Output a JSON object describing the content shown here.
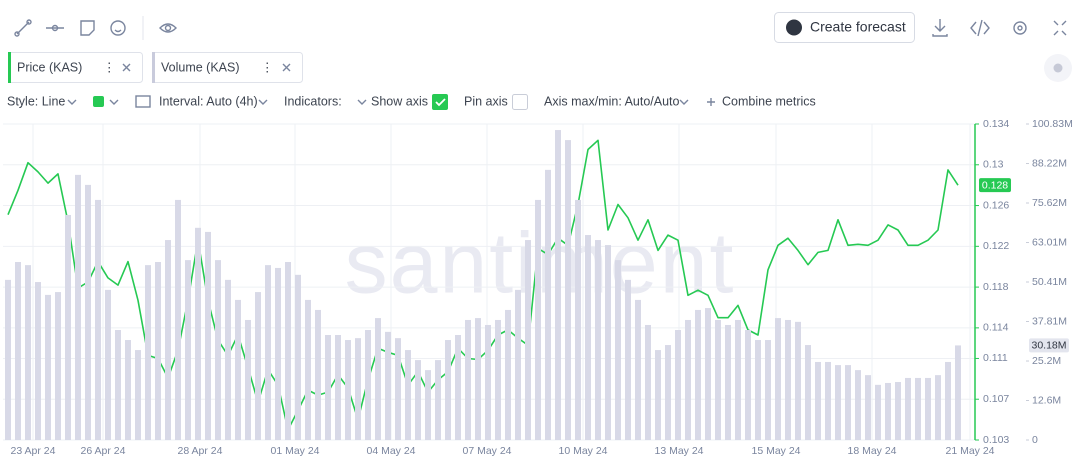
{
  "toolbar": {
    "create_forecast": "Create forecast"
  },
  "settings": {
    "style": "Style: Line",
    "interval": "Interval: Auto (4h)",
    "indicators": "Indicators:",
    "show_axis": "Show axis",
    "pin_axis": "Pin axis",
    "axis_minmax": "Axis max/min: Auto/Auto",
    "combine": "Combine metrics"
  },
  "watermark": "santiment",
  "chart_data": {
    "type": "line",
    "xlim": [
      -0.5,
      96.7
    ],
    "xticks": [
      {
        "value": 2.5,
        "label": "23 Apr 24"
      },
      {
        "value": 9.5,
        "label": "26 Apr 24"
      },
      {
        "value": 19.2,
        "label": "28 Apr 24"
      },
      {
        "value": 28.7,
        "label": "01 May 24"
      },
      {
        "value": 38.3,
        "label": "04 May 24"
      },
      {
        "value": 47.9,
        "label": "07 May 24"
      },
      {
        "value": 57.5,
        "label": "10 May 24"
      },
      {
        "value": 67.1,
        "label": "13 May 24"
      },
      {
        "value": 76.8,
        "label": "15 May 24"
      },
      {
        "value": 86.4,
        "label": "18 May 24"
      },
      {
        "value": 96.2,
        "label": "21 May 24"
      }
    ],
    "ylim": [
      0.103,
      0.134
    ],
    "yticks": [
      0.134,
      0.13,
      0.126,
      0.122,
      0.118,
      0.114,
      0.111,
      0.107,
      0.103
    ],
    "y2lim": [
      0,
      100.83
    ],
    "y2ticks": [
      {
        "value": 100.83,
        "label": "100.83M"
      },
      {
        "value": 88.22,
        "label": "88.22M"
      },
      {
        "value": 75.62,
        "label": "75.62M"
      },
      {
        "value": 63.01,
        "label": "63.01M"
      },
      {
        "value": 50.41,
        "label": "50.41M"
      },
      {
        "value": 37.81,
        "label": "37.81M"
      },
      {
        "value": 25.2,
        "label": "25.2M"
      },
      {
        "value": 12.6,
        "label": "12.6M"
      },
      0
    ],
    "grid": true,
    "series": [
      {
        "name": "Price (KAS)",
        "color": "#26c953",
        "values": [
          0.1251,
          0.1275,
          0.1302,
          0.1293,
          0.1282,
          0.1291,
          0.1244,
          0.1179,
          0.1185,
          0.1205,
          0.1189,
          0.1182,
          0.1205,
          0.1167,
          0.1113,
          0.111,
          0.1091,
          0.1118,
          0.1167,
          0.1226,
          0.1167,
          0.1128,
          0.1113,
          0.1133,
          0.1101,
          0.1067,
          0.1099,
          0.1084,
          0.104,
          0.1059,
          0.1079,
          0.1074,
          0.1077,
          0.1094,
          0.1081,
          0.105,
          0.1089,
          0.112,
          0.1116,
          0.1113,
          0.1084,
          0.1097,
          0.1077,
          0.1089,
          0.1097,
          0.112,
          0.111,
          0.1109,
          0.1118,
          0.1133,
          0.1138,
          0.113,
          0.1123,
          0.1218,
          0.1212,
          0.1228,
          0.1221,
          0.1261,
          0.1315,
          0.1324,
          0.1236,
          0.1261,
          0.1248,
          0.1226,
          0.1246,
          0.1216,
          0.1231,
          0.1226,
          0.1172,
          0.1177,
          0.1172,
          0.115,
          0.115,
          0.1162,
          0.1138,
          0.1133,
          0.1197,
          0.1221,
          0.1228,
          0.1216,
          0.1202,
          0.1214,
          0.1216,
          0.1246,
          0.1221,
          0.1222,
          0.1221,
          0.1226,
          0.1241,
          0.1236,
          0.1221,
          0.1221,
          0.1226,
          0.1236,
          0.1295,
          0.128
        ]
      },
      {
        "name": "Volume (KAS)",
        "type": "bar",
        "axis": "y2",
        "color": "#d8d9e7",
        "current_label": "30.18M",
        "values": [
          51.1,
          56.8,
          55.8,
          50.4,
          46.3,
          47.2,
          71.8,
          84.6,
          81.4,
          76.6,
          47.9,
          35.1,
          31.9,
          28.7,
          55.8,
          56.8,
          63.8,
          76.6,
          57.4,
          67.7,
          66.4,
          57.4,
          51.1,
          44.7,
          38.3,
          47.2,
          55.8,
          54.9,
          56.8,
          52.7,
          44.7,
          41.5,
          33.5,
          33.5,
          31.9,
          32.5,
          35.1,
          38.9,
          34.5,
          32.5,
          28.7,
          25.5,
          22.3,
          25.5,
          31.9,
          33.5,
          38.3,
          38.9,
          36.7,
          38.3,
          41.5,
          47.9,
          63.8,
          76.6,
          86.2,
          98.9,
          95.7,
          76.6,
          65.4,
          63.8,
          62.2,
          57.4,
          51.1,
          44.7,
          36.7,
          28.7,
          30.3,
          35.1,
          38.3,
          41.5,
          42.1,
          38.3,
          36.7,
          38.3,
          35.1,
          31.9,
          31.9,
          38.9,
          38.3,
          37.7,
          30.3,
          24.9,
          24.9,
          23.9,
          23.9,
          22.3,
          20.7,
          17.6,
          18.2,
          18.5,
          19.8,
          19.8,
          19.8,
          20.7,
          24.9,
          30.18
        ]
      }
    ]
  }
}
